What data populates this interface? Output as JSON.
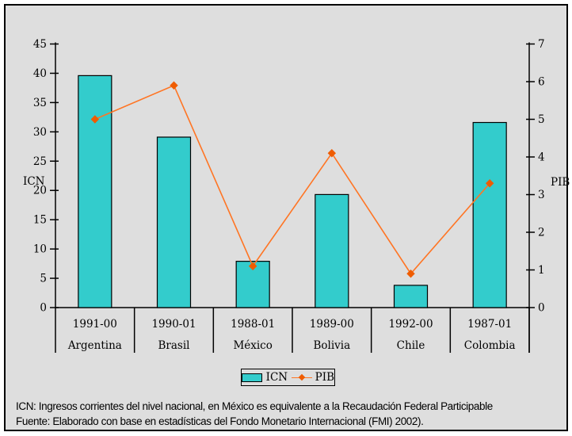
{
  "page": {
    "panel_bg": "#dedede",
    "border_color": "#000000"
  },
  "chart_data": {
    "type": "bar+line",
    "categories": [
      "Argentina",
      "Brasil",
      "México",
      "Bolivia",
      "Chile",
      "Colombia"
    ],
    "period_labels": [
      "1991-00",
      "1990-01",
      "1988-01",
      "1989-00",
      "1992-00",
      "1987-01"
    ],
    "series": [
      {
        "name": "ICN",
        "type": "bar",
        "axis": "left",
        "color": "#33cccc",
        "border": "#000000",
        "values": [
          39.6,
          29.1,
          7.9,
          19.3,
          3.8,
          31.6
        ]
      },
      {
        "name": "PIB",
        "type": "line",
        "axis": "right",
        "color": "#ff7524",
        "marker_color": "#ef5c00",
        "values": [
          5.0,
          5.9,
          1.1,
          4.1,
          0.9,
          3.3
        ]
      }
    ],
    "left_axis": {
      "label": "ICN",
      "min": 0,
      "max": 45,
      "step": 5
    },
    "right_axis": {
      "label": "PIB",
      "min": 0,
      "max": 7,
      "step": 1
    },
    "grid": false,
    "legend_position": "bottom-center",
    "legend": [
      {
        "label": "ICN",
        "swatch": "bar"
      },
      {
        "label": "PIB",
        "swatch": "line-diamond"
      }
    ]
  },
  "footer": {
    "line1": "ICN: Ingresos corrientes del nivel nacional, en México es equivalente a la Recaudación Federal Participable",
    "line2": "Fuente: Elaborado con base en estadísticas del Fondo Monetario Internacional (FMI) 2002)."
  }
}
